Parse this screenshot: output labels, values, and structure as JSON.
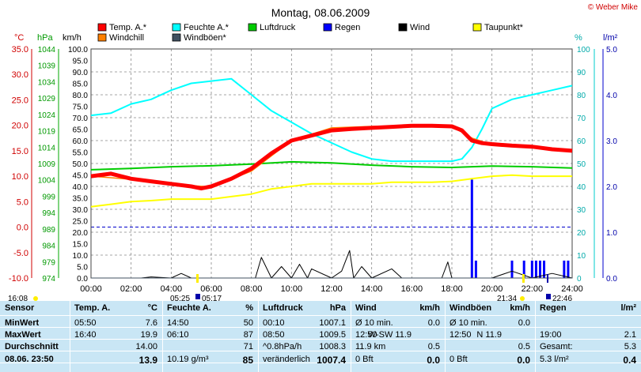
{
  "title": "Montag, 08.06.2009",
  "credit": "© Weber Mike",
  "legend": [
    {
      "label": "Temp. A.*",
      "color": "#ff0000"
    },
    {
      "label": "Feuchte A.*",
      "color": "#00ffff"
    },
    {
      "label": "Luftdruck",
      "color": "#00cc00"
    },
    {
      "label": "Regen",
      "color": "#0000ff"
    },
    {
      "label": "Wind",
      "color": "#000000"
    },
    {
      "label": "Taupunkt*",
      "color": "#ffff00"
    },
    {
      "label": "Windchill",
      "color": "#ff8000"
    },
    {
      "label": "Windböen*",
      "color": "#405060"
    }
  ],
  "axes": {
    "temp_unit": "°C",
    "press_unit": "hPa",
    "wind_unit": "km/h",
    "hum_unit": "%",
    "rain_unit": "l/m²",
    "temp_ticks": [
      "35.0",
      "30.0",
      "25.0",
      "20.0",
      "15.0",
      "10.0",
      "5.0",
      "0.0",
      "-5.0",
      "-10.0"
    ],
    "press_ticks": [
      "1044",
      "1039",
      "1034",
      "1029",
      "1024",
      "1019",
      "1014",
      "1009",
      "1004",
      "999",
      "994",
      "989",
      "984",
      "979",
      "974"
    ],
    "wind_ticks": [
      "100.0",
      "95.0",
      "90.0",
      "85.0",
      "80.0",
      "75.0",
      "70.0",
      "65.0",
      "60.0",
      "55.0",
      "50.0",
      "45.0",
      "40.0",
      "35.0",
      "30.0",
      "25.0",
      "20.0",
      "15.0",
      "10.0",
      "5.0",
      "0.0"
    ],
    "hum_ticks": [
      "100",
      "90",
      "80",
      "70",
      "60",
      "50",
      "40",
      "30",
      "20",
      "10",
      "0"
    ],
    "rain_ticks": [
      "5.0",
      "4.0",
      "3.0",
      "2.0",
      "1.0",
      "0.0"
    ],
    "time_ticks": [
      "00:00",
      "02:00",
      "04:00",
      "06:00",
      "08:00",
      "10:00",
      "12:00",
      "14:00",
      "16:00",
      "18:00",
      "20:00",
      "22:00",
      "24:00"
    ]
  },
  "sun": {
    "sunset_left": "16:08",
    "sunrise": "05:25",
    "sunrise2": "05:17",
    "dusk": "21:34",
    "sunset": "22:46"
  },
  "chart_data": {
    "type": "line",
    "x_unit": "hours",
    "xlim": [
      0,
      24
    ],
    "series": [
      {
        "name": "Temp. A.*",
        "axis": "°C",
        "color": "#ff0000",
        "x": [
          0,
          1,
          2,
          3,
          4,
          5,
          5.5,
          6,
          7,
          8,
          9,
          10,
          11,
          12,
          13,
          14,
          15,
          16,
          17,
          18,
          18.5,
          19,
          19.5,
          20,
          21,
          22,
          23,
          24
        ],
        "values": [
          10.0,
          10.5,
          9.5,
          9.0,
          8.5,
          8.0,
          7.6,
          8.0,
          9.5,
          11.5,
          14.5,
          17.0,
          18.0,
          19.0,
          19.3,
          19.5,
          19.7,
          19.9,
          19.9,
          19.8,
          19.0,
          17.0,
          16.5,
          16.3,
          16.0,
          15.8,
          15.3,
          15.0
        ]
      },
      {
        "name": "Windchill",
        "axis": "°C",
        "color": "#ff8000",
        "x": [
          0,
          2,
          4,
          6,
          8,
          10,
          12,
          14,
          16,
          18,
          19,
          20,
          22,
          24
        ],
        "values": [
          10.0,
          9.4,
          8.4,
          7.9,
          11.0,
          17.0,
          19.5,
          19.8,
          19.9,
          19.8,
          17.5,
          16.2,
          15.8,
          14.9
        ]
      },
      {
        "name": "Feuchte A.*",
        "axis": "%",
        "color": "#00ffff",
        "x": [
          0,
          1,
          2,
          3,
          4,
          5,
          6,
          7,
          8,
          9,
          10,
          11,
          12,
          13,
          14,
          15,
          16,
          17,
          18,
          18.5,
          19,
          19.5,
          20,
          21,
          22,
          23,
          24
        ],
        "values": [
          71,
          72,
          76,
          78,
          82,
          85,
          86,
          87,
          80,
          73,
          68,
          63,
          59,
          55,
          52,
          51,
          51,
          51,
          51,
          52,
          57,
          65,
          74,
          78,
          80,
          82,
          84
        ]
      },
      {
        "name": "Luftdruck",
        "axis": "hPa",
        "color": "#00cc00",
        "x": [
          0,
          2,
          4,
          6,
          8,
          10,
          12,
          14,
          16,
          18,
          20,
          22,
          24
        ],
        "values": [
          1007.1,
          1007.5,
          1008.0,
          1008.3,
          1008.8,
          1009.5,
          1009.2,
          1008.5,
          1008.0,
          1007.8,
          1008.2,
          1008.0,
          1007.6
        ]
      },
      {
        "name": "Taupunkt*",
        "axis": "°C",
        "color": "#ffff00",
        "x": [
          0,
          1,
          2,
          3,
          4,
          5,
          6,
          7,
          8,
          9,
          10,
          11,
          12,
          13,
          14,
          15,
          16,
          17,
          18,
          19,
          20,
          21,
          22,
          23,
          24
        ],
        "values": [
          4.0,
          4.5,
          5.0,
          5.2,
          5.5,
          5.5,
          5.5,
          6.0,
          6.5,
          7.5,
          8.0,
          8.5,
          8.5,
          8.5,
          8.5,
          8.8,
          8.8,
          8.8,
          9.0,
          9.5,
          10.0,
          10.2,
          10.0,
          10.0,
          10.0
        ]
      },
      {
        "name": "Wind",
        "axis": "km/h",
        "color": "#000000",
        "x": [
          0,
          2.5,
          3,
          4,
          4.5,
          5,
          8.2,
          8.5,
          9,
          9.5,
          10,
          10.4,
          10.8,
          11,
          12,
          12.5,
          12.9,
          13.1,
          13.5,
          14,
          15,
          15.5,
          16,
          17.5,
          17.8,
          18,
          20,
          21,
          22,
          23,
          24
        ],
        "values": [
          0,
          0,
          0.5,
          0,
          2,
          0,
          0,
          9,
          0,
          5,
          0,
          6,
          0,
          4,
          0,
          3,
          12,
          0,
          5,
          0,
          4,
          0,
          0,
          0,
          7,
          0,
          0,
          3,
          0,
          2,
          0
        ]
      },
      {
        "name": "Windböen*",
        "axis": "km/h",
        "color": "#405060",
        "x": [
          0,
          24
        ],
        "values": [
          0,
          0
        ]
      }
    ],
    "rain": {
      "name": "Regen",
      "axis": "l/m²",
      "color": "#0000ff",
      "x": [
        19.0,
        19.2,
        21.0,
        21.6,
        22.0,
        22.2,
        22.4,
        22.6,
        23.6,
        23.8
      ],
      "values": [
        2.15,
        0.38,
        0.38,
        0.38,
        0.38,
        0.38,
        0.38,
        0.38,
        0.38,
        0.38
      ]
    },
    "ylim_temp": [
      -10,
      35
    ],
    "ylim_hum": [
      0,
      100
    ],
    "ylim_press": [
      974,
      1044
    ],
    "ylim_wind": [
      0,
      100
    ],
    "ylim_rain": [
      0,
      5
    ]
  },
  "stats": {
    "cols": [
      {
        "header": "Sensor",
        "rows": [
          "MinWert",
          "MaxWert",
          "Durchschnitt",
          "08.06. 23:50"
        ]
      },
      {
        "header": "Temp. A.",
        "unit": "°C",
        "rows": [
          [
            "05:50",
            "7.6"
          ],
          [
            "16:40",
            "19.9"
          ],
          [
            "",
            "14.00"
          ],
          [
            "",
            "13.9"
          ]
        ]
      },
      {
        "header": "Feuchte A.",
        "unit": "%",
        "rows": [
          [
            "14:50",
            "50"
          ],
          [
            "06:10",
            "87"
          ],
          [
            "",
            "71"
          ],
          [
            "10.19 g/m³",
            "85"
          ]
        ]
      },
      {
        "header": "Luftdruck",
        "unit": "hPa",
        "rows": [
          [
            "00:10",
            "1007.1"
          ],
          [
            "08:50",
            "1009.5"
          ],
          [
            "^0.8hPa/h",
            "1008.3"
          ],
          [
            "veränderlich",
            "1007.4"
          ]
        ]
      },
      {
        "header": "Wind",
        "unit": "km/h",
        "rows": [
          [
            "Ø 10 min.",
            "",
            "0.0"
          ],
          [
            "12:50",
            "W-SW 11.9",
            ""
          ],
          [
            "11.9 km",
            "",
            "0.5"
          ],
          [
            "0 Bft",
            "",
            "0.0"
          ]
        ]
      },
      {
        "header": "Windböen",
        "unit": "km/h",
        "rows": [
          [
            "Ø 10 min.",
            "",
            "0.0"
          ],
          [
            "12:50",
            "N 11.9",
            ""
          ],
          [
            "",
            "",
            "0.5"
          ],
          [
            "0 Bft",
            "",
            "0.0"
          ]
        ]
      },
      {
        "header": "Regen",
        "unit": "l/m²",
        "rows": [
          [
            "",
            "",
            ""
          ],
          [
            "19:00",
            "",
            "2.1"
          ],
          [
            "Gesamt:",
            "",
            "5.3"
          ],
          [
            "5.3 l/m²",
            "",
            "0.4"
          ]
        ]
      }
    ]
  }
}
